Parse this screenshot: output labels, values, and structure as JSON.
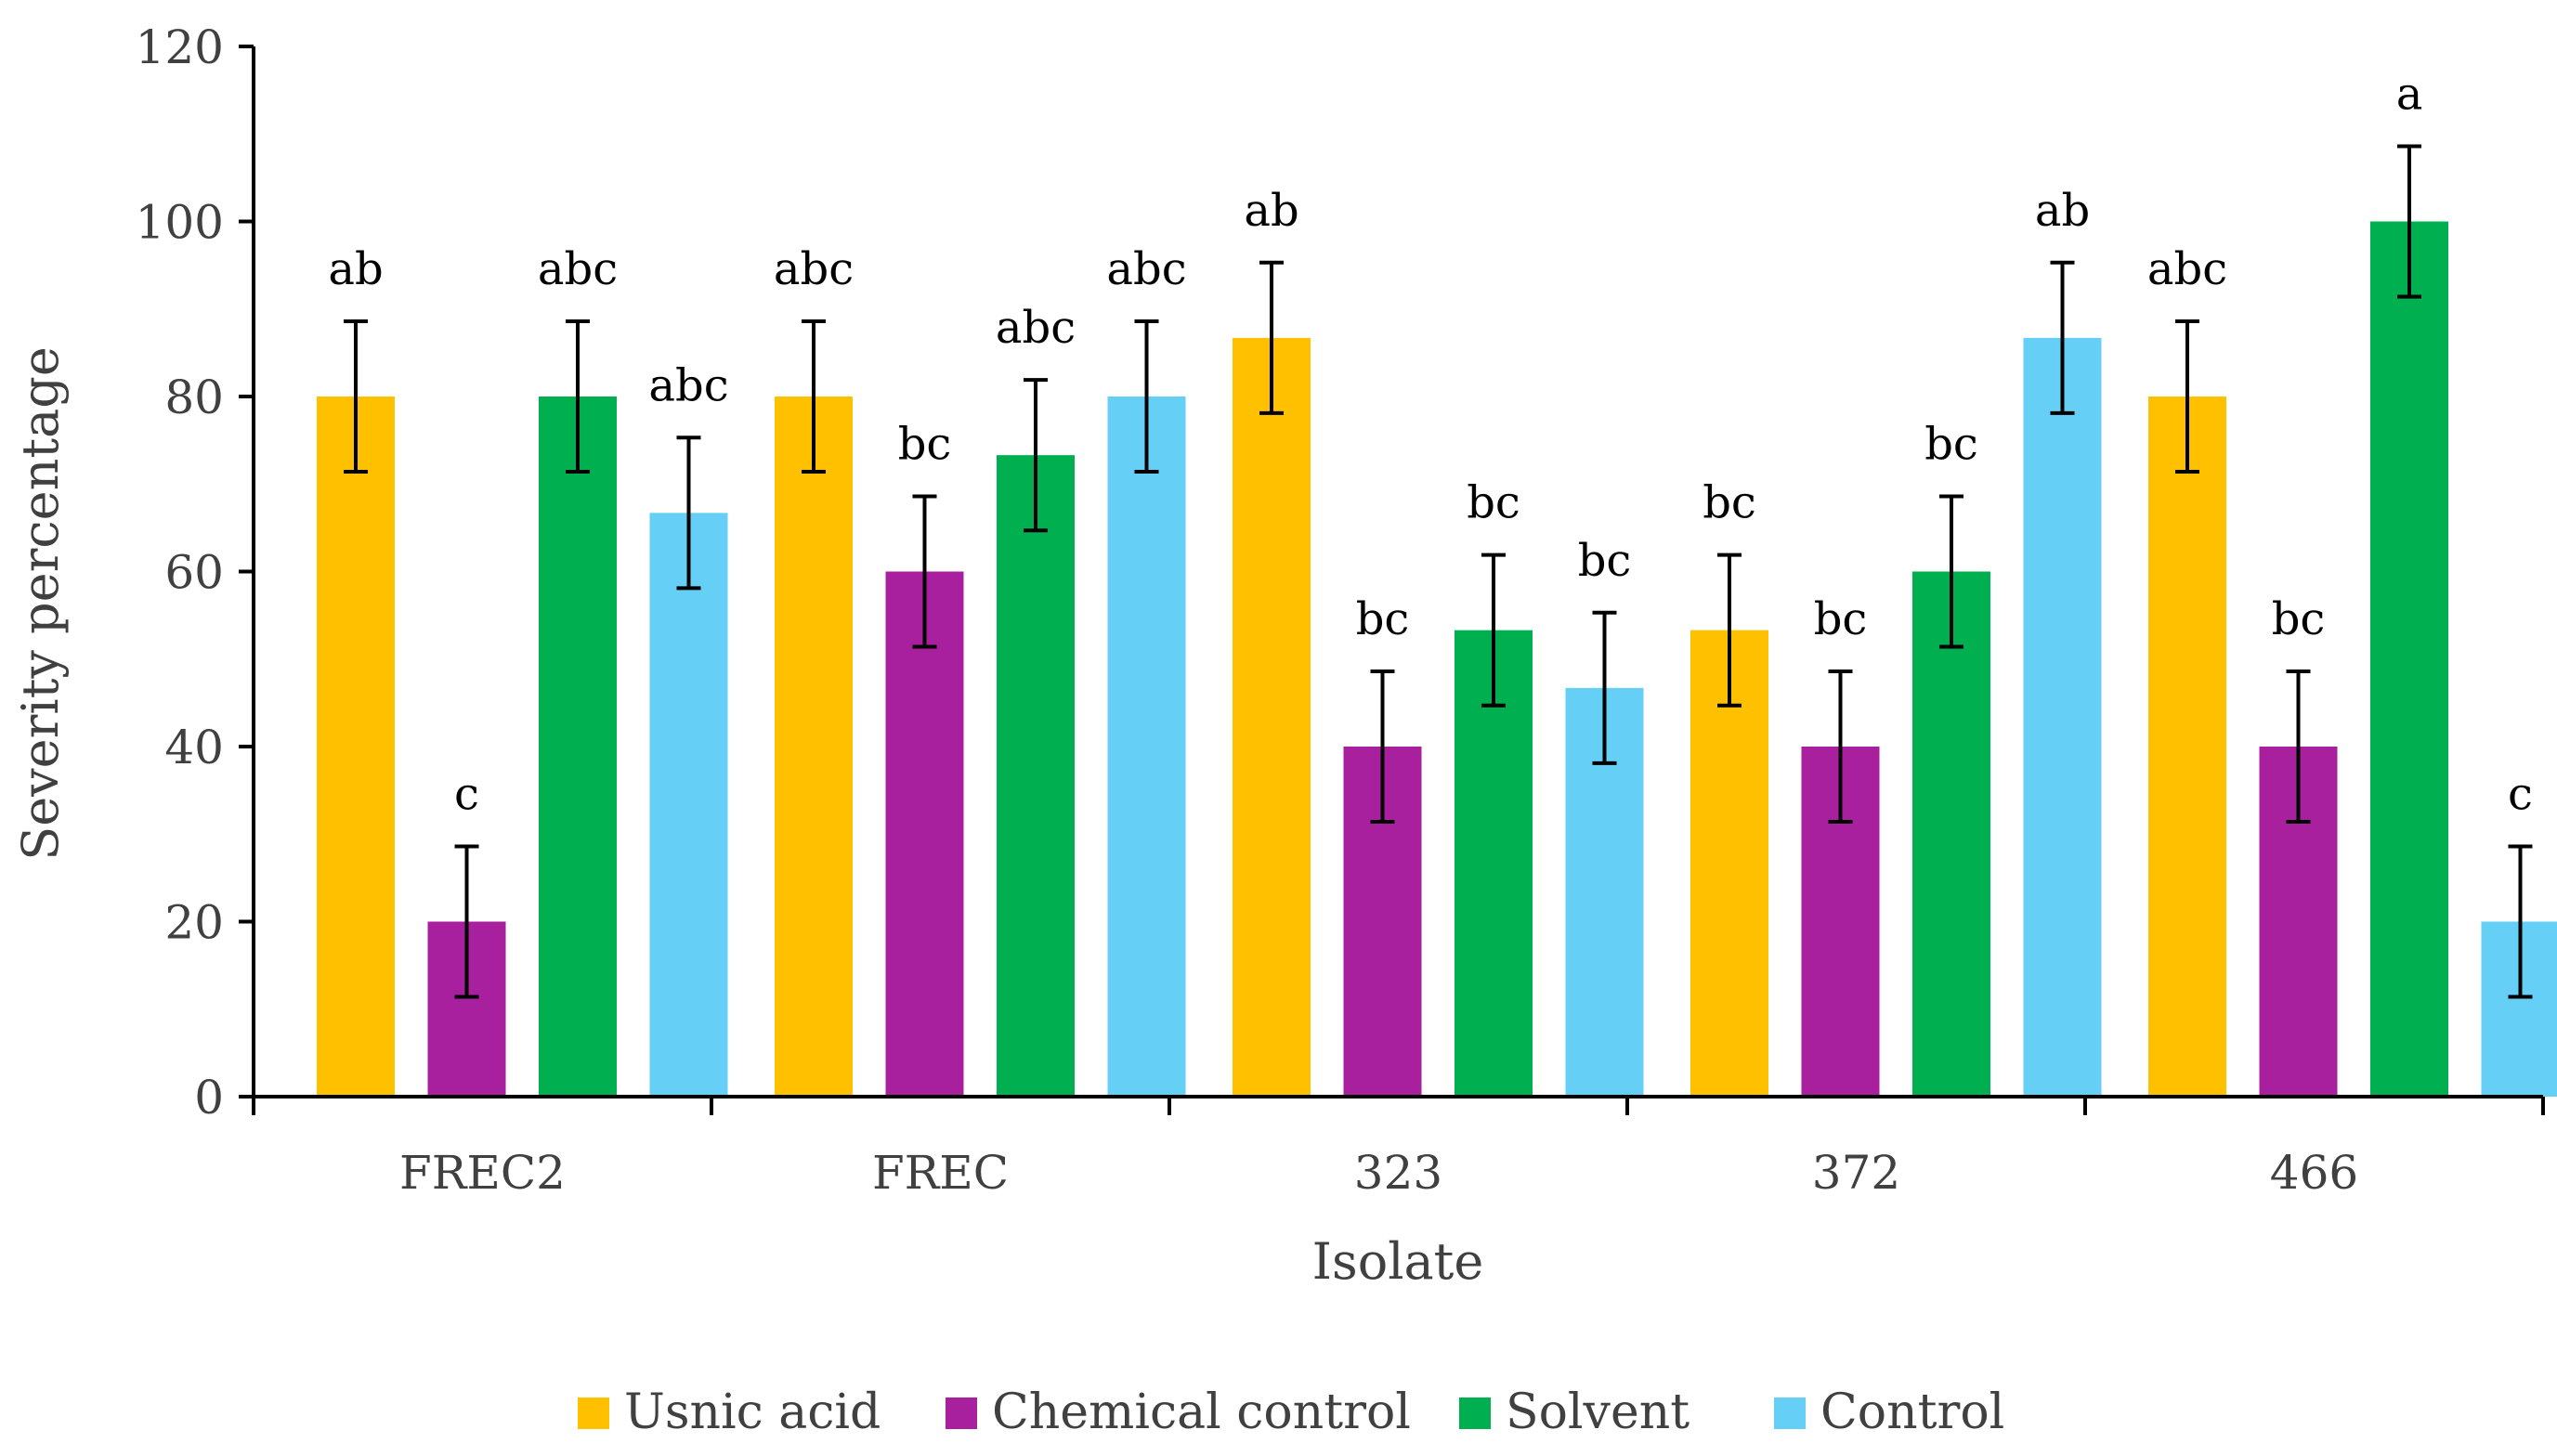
{
  "chart_data": {
    "type": "bar",
    "title": "",
    "xlabel": "Isolate",
    "ylabel": "Severity percentage",
    "categories": [
      "FREC2",
      "FREC",
      "323",
      "372",
      "466"
    ],
    "ylim": [
      0,
      120
    ],
    "yticks": [
      0,
      20,
      40,
      60,
      80,
      100,
      120
    ],
    "legend_position": "bottom",
    "series": [
      {
        "name": "Usnic acid",
        "color": "#FFC000",
        "values": [
          80,
          80,
          86.7,
          53.3,
          80
        ],
        "errors": [
          8.6,
          8.6,
          8.6,
          8.6,
          8.6
        ],
        "letters": [
          "ab",
          "abc",
          "ab",
          "bc",
          "abc"
        ]
      },
      {
        "name": "Chemical control",
        "color": "#A9209E",
        "values": [
          20,
          60,
          40,
          40,
          40
        ],
        "errors": [
          8.6,
          8.6,
          8.6,
          8.6,
          8.6
        ],
        "letters": [
          "c",
          "bc",
          "bc",
          "bc",
          "bc"
        ]
      },
      {
        "name": "Solvent",
        "color": "#00B050",
        "values": [
          80,
          73.3,
          53.3,
          60,
          100
        ],
        "errors": [
          8.6,
          8.6,
          8.6,
          8.6,
          8.6
        ],
        "letters": [
          "abc",
          "abc",
          "bc",
          "bc",
          "a"
        ]
      },
      {
        "name": "Control",
        "color": "#66CFF5",
        "values": [
          66.7,
          80,
          46.7,
          86.7,
          20
        ],
        "errors": [
          8.6,
          8.6,
          8.6,
          8.6,
          8.6
        ],
        "letters": [
          "abc",
          "abc",
          "bc",
          "ab",
          "c"
        ]
      }
    ]
  }
}
